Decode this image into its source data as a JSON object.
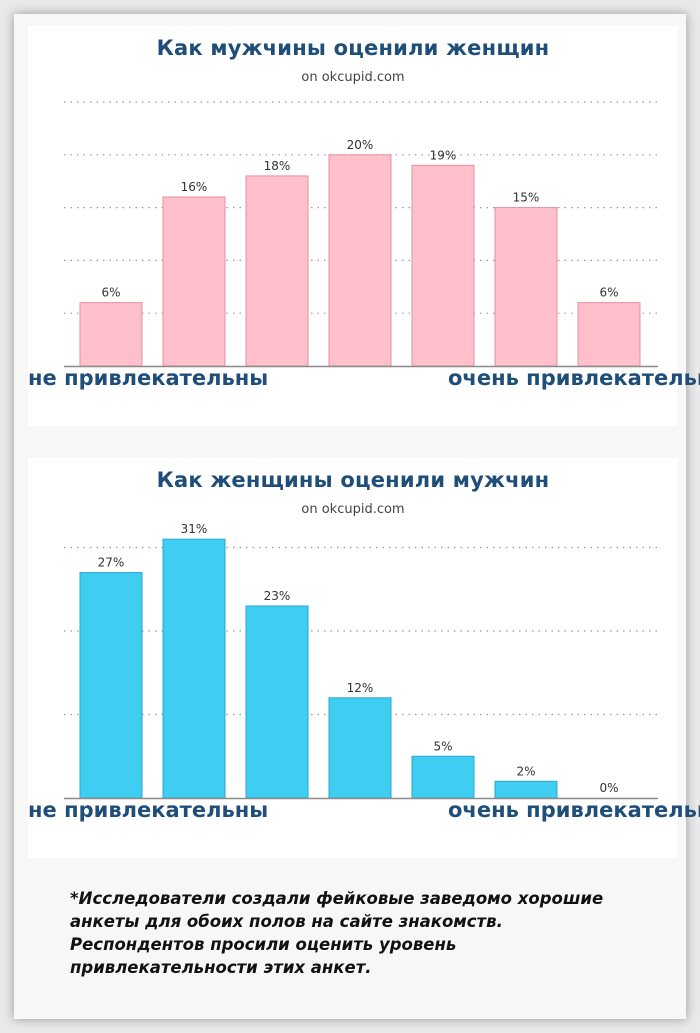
{
  "chart_data": [
    {
      "type": "bar",
      "title": "Как мужчины оценили женщин",
      "subtitle": "on okcupid.com",
      "values": [
        6,
        16,
        18,
        20,
        19,
        15,
        6
      ],
      "value_labels": [
        "6%",
        "16%",
        "18%",
        "20%",
        "19%",
        "15%",
        "6%"
      ],
      "ylim": [
        0,
        25
      ],
      "gridlines": [
        5,
        10,
        15,
        20,
        25
      ],
      "grid": true,
      "bar_color": "#ffc0cb",
      "bar_border": "#e68fa0",
      "low_label": "не привлекательны",
      "high_label": "очень привлекательны"
    },
    {
      "type": "bar",
      "title": "Как женщины оценили мужчин",
      "subtitle": "on okcupid.com",
      "values": [
        27,
        31,
        23,
        12,
        5,
        2,
        0
      ],
      "value_labels": [
        "27%",
        "31%",
        "23%",
        "12%",
        "5%",
        "2%",
        "0%"
      ],
      "ylim": [
        0,
        31.5
      ],
      "gridlines": [
        10,
        20,
        30
      ],
      "grid": true,
      "bar_color": "#40cdf2",
      "bar_border": "#2aa8cc",
      "low_label": "не привлекательны",
      "high_label": "очень привлекательны"
    }
  ],
  "footnote": "*Исследователи создали фейковые заведомо хорошие анкеты для обоих полов на сайте знакомств. Респондентов просили оценить уровень привлекательности этих анкет."
}
